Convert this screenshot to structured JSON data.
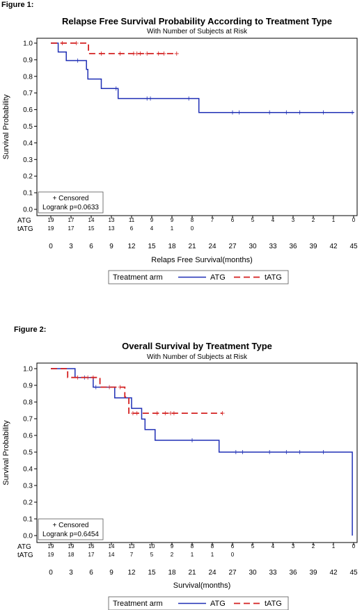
{
  "chart_data": [
    {
      "type": "line",
      "figure_label": "Figure 1:",
      "title": "Relapse Free Survival Probability According to Treatment Type",
      "subtitle": "With Number of Subjects at Risk",
      "xlabel": "Relaps Free Survival(months)",
      "ylabel": "Survival Probability",
      "xlim": [
        0,
        45
      ],
      "ylim": [
        0,
        1
      ],
      "x_ticks": [
        "0",
        "3",
        "6",
        "9",
        "12",
        "15",
        "18",
        "21",
        "24",
        "27",
        "30",
        "33",
        "36",
        "39",
        "42",
        "45"
      ],
      "y_ticks": [
        "0.0",
        "0.1",
        "0.2",
        "0.3",
        "0.4",
        "0.5",
        "0.6",
        "0.7",
        "0.8",
        "0.9",
        "1.0"
      ],
      "inset": {
        "line1": "+ Censored",
        "line2": "Logrank p=0.0633"
      },
      "legend": {
        "title": "Treatment arm",
        "entries": [
          "ATG",
          "tATG"
        ]
      },
      "series": [
        {
          "name": "ATG",
          "color": "#1f2fb5",
          "dash": "solid",
          "steps": [
            [
              0,
              1.0
            ],
            [
              1.1,
              1.0
            ],
            [
              1.1,
              0.947
            ],
            [
              2.3,
              0.947
            ],
            [
              2.3,
              0.895
            ],
            [
              5.3,
              0.895
            ],
            [
              5.3,
              0.842
            ],
            [
              5.5,
              0.842
            ],
            [
              5.5,
              0.784
            ],
            [
              7.5,
              0.784
            ],
            [
              7.5,
              0.727
            ],
            [
              10,
              0.727
            ],
            [
              10,
              0.667
            ],
            [
              22,
              0.667
            ],
            [
              22,
              0.583
            ],
            [
              45,
              0.583
            ]
          ],
          "censored": [
            [
              4,
              0.895
            ],
            [
              9.7,
              0.727
            ],
            [
              14.3,
              0.667
            ],
            [
              14.8,
              0.667
            ],
            [
              20.5,
              0.667
            ],
            [
              27,
              0.583
            ],
            [
              28,
              0.583
            ],
            [
              32.5,
              0.583
            ],
            [
              35,
              0.583
            ],
            [
              37,
              0.583
            ],
            [
              40.5,
              0.583
            ],
            [
              44.8,
              0.583
            ]
          ]
        },
        {
          "name": "tATG",
          "color": "#d42020",
          "dash": "dashed",
          "steps": [
            [
              0,
              1.0
            ],
            [
              5.6,
              1.0
            ],
            [
              5.6,
              0.937
            ],
            [
              18.7,
              0.937
            ]
          ],
          "censored": [
            [
              1.7,
              1.0
            ],
            [
              3.8,
              1.0
            ],
            [
              7.5,
              0.937
            ],
            [
              10.3,
              0.937
            ],
            [
              12.3,
              0.937
            ],
            [
              12.8,
              0.937
            ],
            [
              13.3,
              0.937
            ],
            [
              14.3,
              0.937
            ],
            [
              16,
              0.937
            ],
            [
              16.8,
              0.937
            ],
            [
              18.7,
              0.937
            ]
          ]
        }
      ],
      "at_risk": {
        "times": [
          0,
          3,
          6,
          9,
          12,
          15,
          18,
          21,
          24,
          27,
          30,
          33,
          36,
          39,
          42,
          45
        ],
        "rows": [
          {
            "label": "ATG",
            "counts": [
              "19",
              "17",
              "14",
              "13",
              "11",
              "9",
              "9",
              "8",
              "7",
              "6",
              "5",
              "4",
              "3",
              "2",
              "1",
              "0"
            ]
          },
          {
            "label": "tATG",
            "counts": [
              "19",
              "17",
              "15",
              "13",
              "6",
              "4",
              "1",
              "0",
              "",
              "",
              "",
              "",
              "",
              "",
              "",
              ""
            ]
          }
        ]
      }
    },
    {
      "type": "line",
      "figure_label": "Figure 2:",
      "title": "Overall Survival by Treatment Type",
      "subtitle": "With Number of Subjects at Risk",
      "xlabel": "Survival(months)",
      "ylabel": "Survival Probability",
      "xlim": [
        0,
        45
      ],
      "ylim": [
        0,
        1
      ],
      "x_ticks": [
        "0",
        "3",
        "6",
        "9",
        "12",
        "15",
        "18",
        "21",
        "24",
        "27",
        "30",
        "33",
        "36",
        "39",
        "42",
        "45"
      ],
      "y_ticks": [
        "0.0",
        "0.1",
        "0.2",
        "0.3",
        "0.4",
        "0.5",
        "0.6",
        "0.7",
        "0.8",
        "0.9",
        "1.0"
      ],
      "inset": {
        "line1": "+ Censored",
        "line2": "Logrank p=0.6454"
      },
      "legend": {
        "title": "Treatment arm",
        "entries": [
          "ATG",
          "tATG"
        ]
      },
      "series": [
        {
          "name": "ATG",
          "color": "#1f2fb5",
          "dash": "solid",
          "steps": [
            [
              0,
              1.0
            ],
            [
              3.6,
              1.0
            ],
            [
              3.6,
              0.947
            ],
            [
              6.3,
              0.947
            ],
            [
              6.3,
              0.889
            ],
            [
              9.5,
              0.889
            ],
            [
              9.5,
              0.825
            ],
            [
              12,
              0.825
            ],
            [
              12,
              0.762
            ],
            [
              13.5,
              0.762
            ],
            [
              13.5,
              0.698
            ],
            [
              14,
              0.698
            ],
            [
              14,
              0.635
            ],
            [
              15.5,
              0.635
            ],
            [
              15.5,
              0.571
            ],
            [
              25,
              0.571
            ],
            [
              25,
              0.5
            ],
            [
              44.8,
              0.5
            ],
            [
              44.8,
              0.0
            ]
          ],
          "censored": [
            [
              5,
              0.947
            ],
            [
              6.7,
              0.889
            ],
            [
              21,
              0.571
            ],
            [
              27.5,
              0.5
            ],
            [
              28.5,
              0.5
            ],
            [
              32.5,
              0.5
            ],
            [
              35,
              0.5
            ],
            [
              37,
              0.5
            ],
            [
              40.5,
              0.5
            ]
          ]
        },
        {
          "name": "tATG",
          "color": "#d42020",
          "dash": "dashed",
          "steps": [
            [
              0,
              1.0
            ],
            [
              2.5,
              1.0
            ],
            [
              2.5,
              0.947
            ],
            [
              7.3,
              0.947
            ],
            [
              7.3,
              0.889
            ],
            [
              11,
              0.889
            ],
            [
              11,
              0.83
            ],
            [
              11.6,
              0.83
            ],
            [
              11.6,
              0.733
            ],
            [
              25.5,
              0.733
            ]
          ],
          "censored": [
            [
              4,
              0.947
            ],
            [
              5.5,
              0.947
            ],
            [
              6.3,
              0.947
            ],
            [
              8.7,
              0.889
            ],
            [
              10.3,
              0.889
            ],
            [
              12.2,
              0.733
            ],
            [
              12.8,
              0.733
            ],
            [
              15.8,
              0.733
            ],
            [
              17,
              0.733
            ],
            [
              17.8,
              0.733
            ],
            [
              18.3,
              0.733
            ],
            [
              25.5,
              0.733
            ]
          ]
        }
      ],
      "at_risk": {
        "times": [
          0,
          3,
          6,
          9,
          12,
          15,
          18,
          21,
          24,
          27,
          30,
          33,
          36,
          39,
          42,
          45
        ],
        "rows": [
          {
            "label": "ATG",
            "counts": [
              "19",
              "19",
              "16",
              "14",
              "13",
              "10",
              "9",
              "8",
              "8",
              "6",
              "5",
              "4",
              "3",
              "2",
              "1",
              "0"
            ]
          },
          {
            "label": "tATG",
            "counts": [
              "19",
              "18",
              "17",
              "14",
              "7",
              "5",
              "2",
              "1",
              "1",
              "0",
              "",
              "",
              "",
              "",
              "",
              ""
            ]
          }
        ]
      }
    }
  ]
}
